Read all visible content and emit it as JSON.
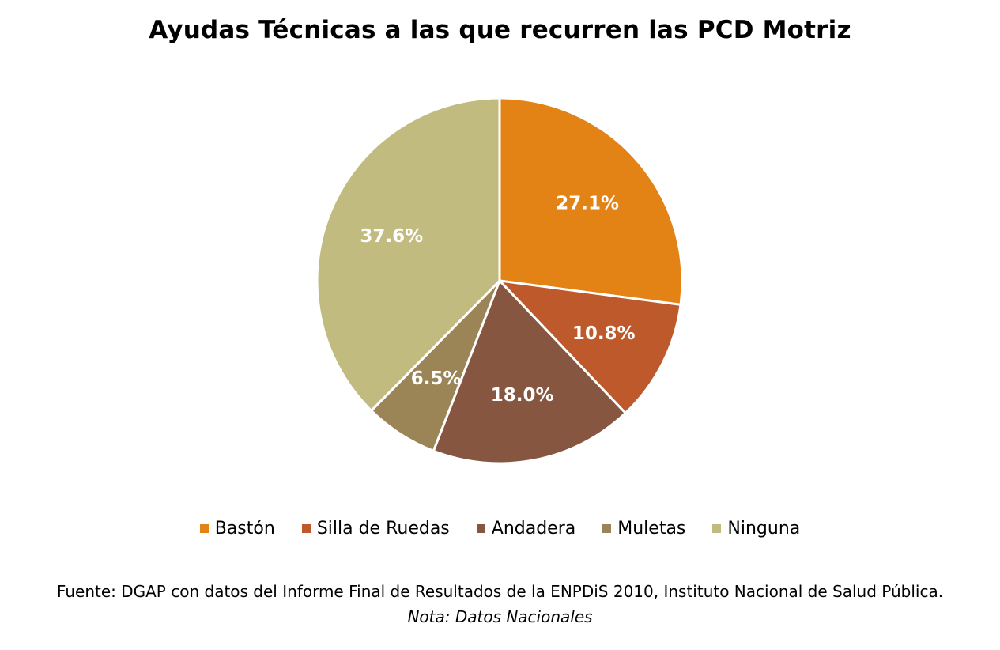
{
  "chart_data": {
    "type": "pie",
    "title": "Ayudas Técnicas a las que recurren las PCD Motriz",
    "categories": [
      "Bastón",
      "Silla de Ruedas",
      "Andadera",
      "Muletas",
      "Ninguna"
    ],
    "values": [
      27.1,
      10.8,
      18.0,
      6.5,
      37.6
    ],
    "value_labels": [
      "27.1%",
      "10.8%",
      "18.0%",
      "6.5%",
      "37.6%"
    ],
    "colors": [
      "#e48315",
      "#bd592b",
      "#875640",
      "#9b8456",
      "#c2bb80"
    ],
    "start_angle": "12 o'clock",
    "direction": "clockwise",
    "legend_position": "bottom",
    "label_color": "#ffffff"
  },
  "footer": {
    "source": "Fuente: DGAP con datos del Informe Final de Resultados de la ENPDiS 2010, Instituto Nacional de Salud Pública.",
    "note": "Nota: Datos Nacionales"
  }
}
